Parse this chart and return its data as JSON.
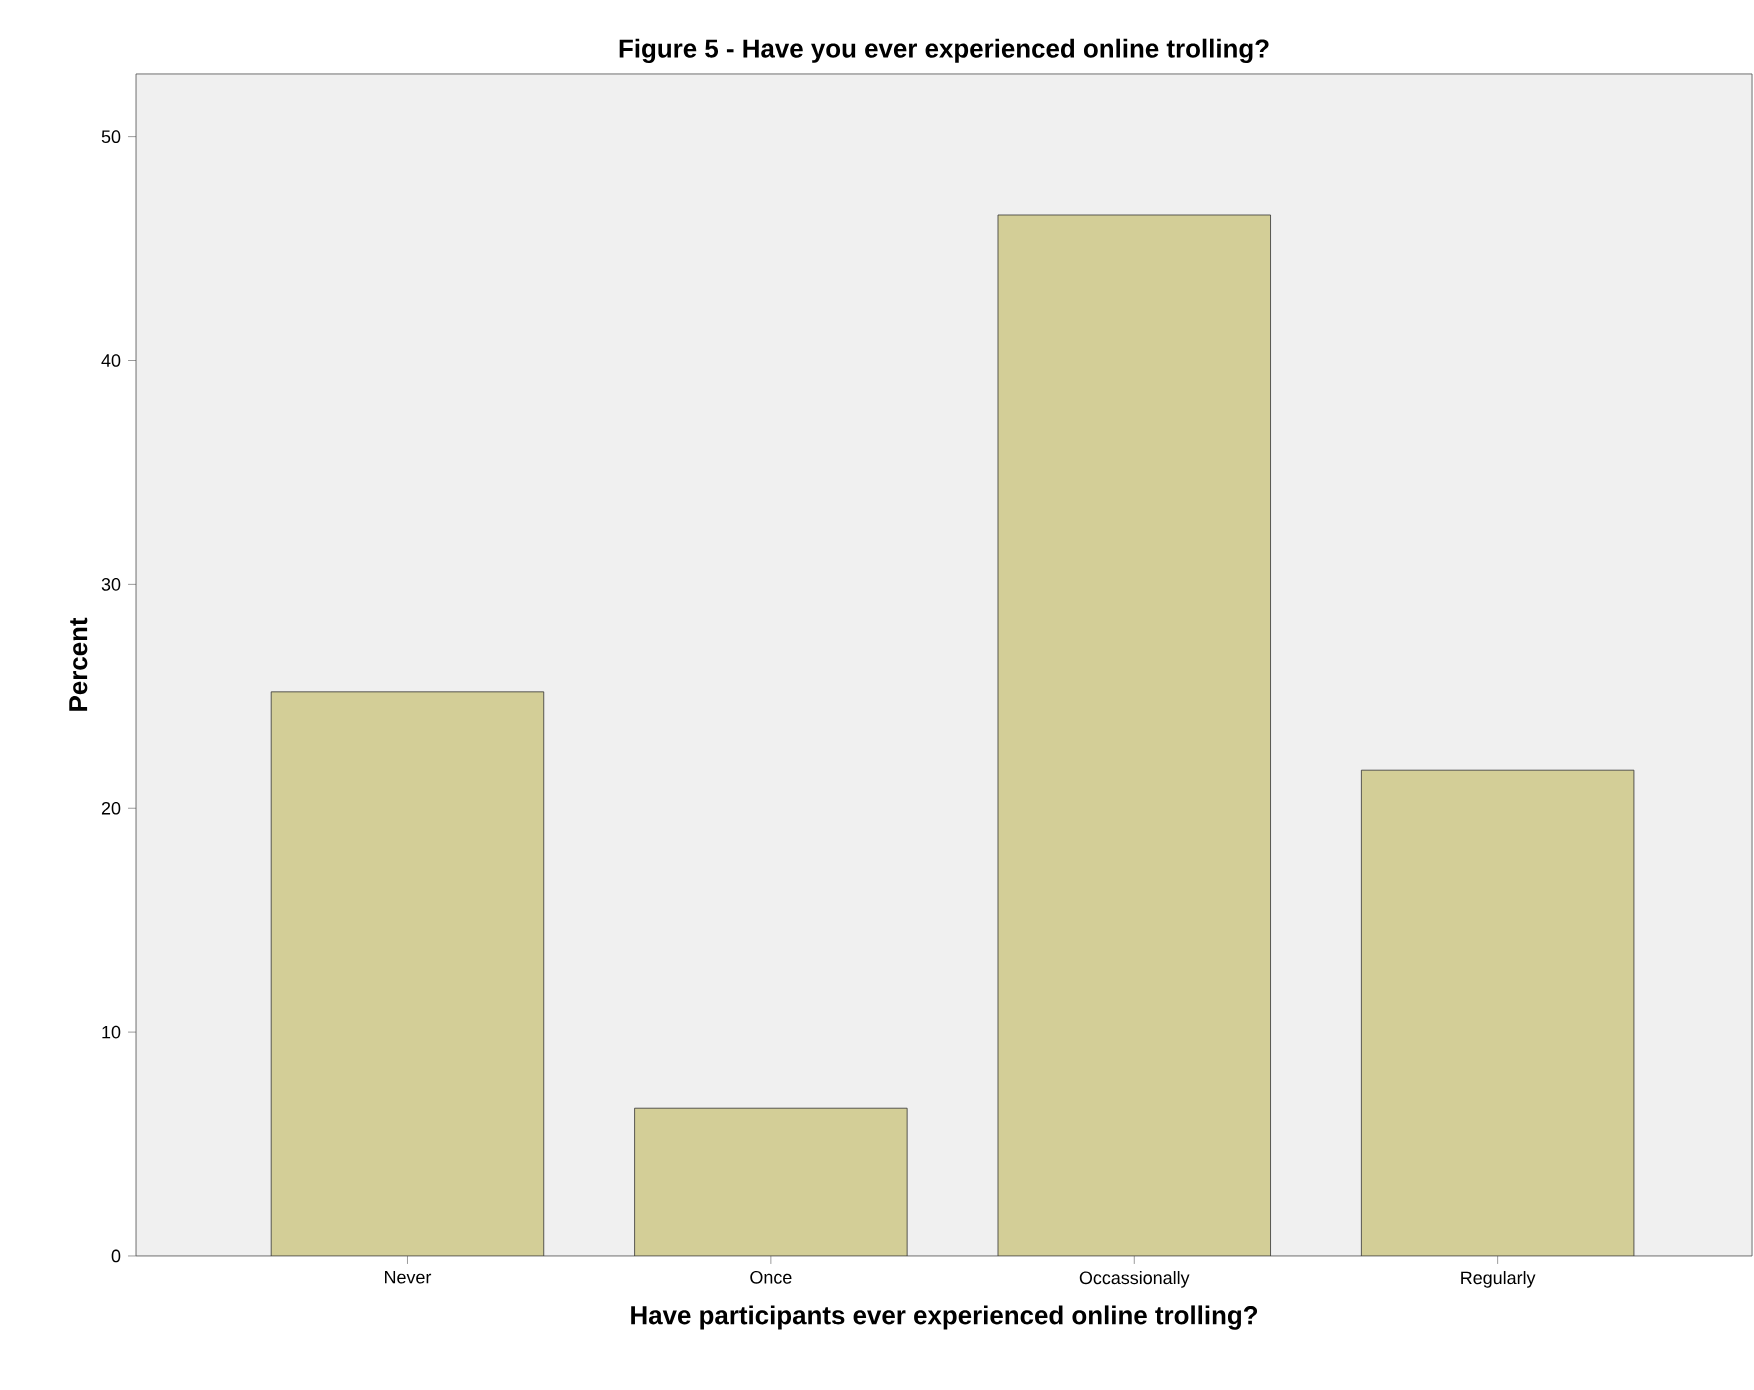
{
  "chart_data": {
    "type": "bar",
    "title": "Figure 5 - Have you ever experienced online trolling?",
    "xlabel": "Have participants ever experienced online trolling?",
    "ylabel": "Percent",
    "categories": [
      "Never",
      "Once",
      "Occassionally",
      "Regularly"
    ],
    "values": [
      25.2,
      6.6,
      46.5,
      21.7
    ],
    "color": "#d3ce97",
    "ylim": [
      0,
      52.8
    ],
    "yticks": [
      0,
      10,
      20,
      30,
      40,
      50
    ],
    "grid": false
  }
}
